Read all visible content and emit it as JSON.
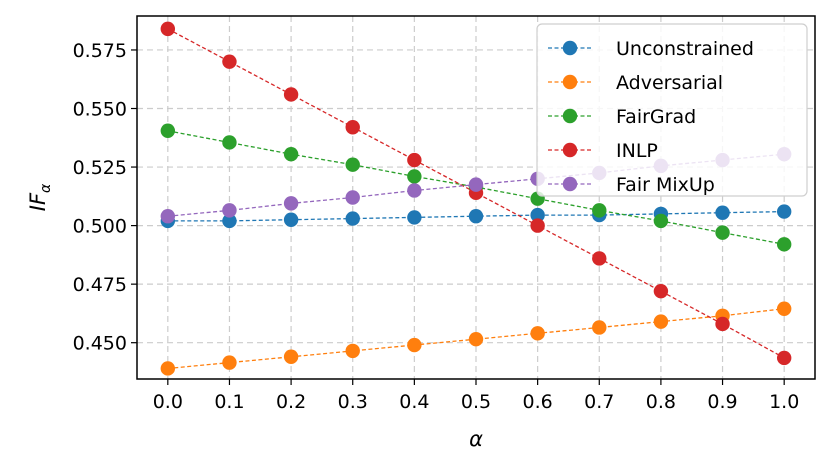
{
  "chart_data": {
    "type": "line",
    "xlabel": "α",
    "ylabel_main": "IF",
    "ylabel_sub": "α",
    "x": [
      0.0,
      0.1,
      0.2,
      0.3,
      0.4,
      0.5,
      0.6,
      0.7,
      0.8,
      0.9,
      1.0
    ],
    "xticks": [
      "0.0",
      "0.1",
      "0.2",
      "0.3",
      "0.4",
      "0.5",
      "0.6",
      "0.7",
      "0.8",
      "0.9",
      "1.0"
    ],
    "yticks": [
      0.45,
      0.475,
      0.5,
      0.525,
      0.55,
      0.575
    ],
    "ytick_labels": [
      "0.450",
      "0.475",
      "0.500",
      "0.525",
      "0.550",
      "0.575"
    ],
    "xlim": [
      -0.05,
      1.05
    ],
    "ylim": [
      0.4345,
      0.5895
    ],
    "grid": true,
    "legend_position": "top-right",
    "series": [
      {
        "name": "Unconstrained",
        "color": "#1f77b4",
        "values": [
          0.502,
          0.502,
          0.5025,
          0.503,
          0.5035,
          0.504,
          0.5045,
          0.5045,
          0.505,
          0.5055,
          0.506
        ]
      },
      {
        "name": "Adversarial",
        "color": "#ff7f0e",
        "values": [
          0.439,
          0.4415,
          0.444,
          0.4465,
          0.449,
          0.4515,
          0.454,
          0.4565,
          0.459,
          0.4615,
          0.4645
        ]
      },
      {
        "name": "FairGrad",
        "color": "#2ca02c",
        "values": [
          0.5405,
          0.5355,
          0.5305,
          0.526,
          0.521,
          0.5165,
          0.5115,
          0.5065,
          0.502,
          0.497,
          0.492
        ]
      },
      {
        "name": "INLP",
        "color": "#d62728",
        "values": [
          0.584,
          0.57,
          0.556,
          0.542,
          0.528,
          0.514,
          0.5,
          0.486,
          0.472,
          0.458,
          0.4435
        ]
      },
      {
        "name": "Fair MixUp",
        "color": "#9467bd",
        "values": [
          0.504,
          0.5065,
          0.5095,
          0.512,
          0.515,
          0.5175,
          0.52,
          0.5225,
          0.5255,
          0.528,
          0.5305
        ]
      }
    ]
  }
}
